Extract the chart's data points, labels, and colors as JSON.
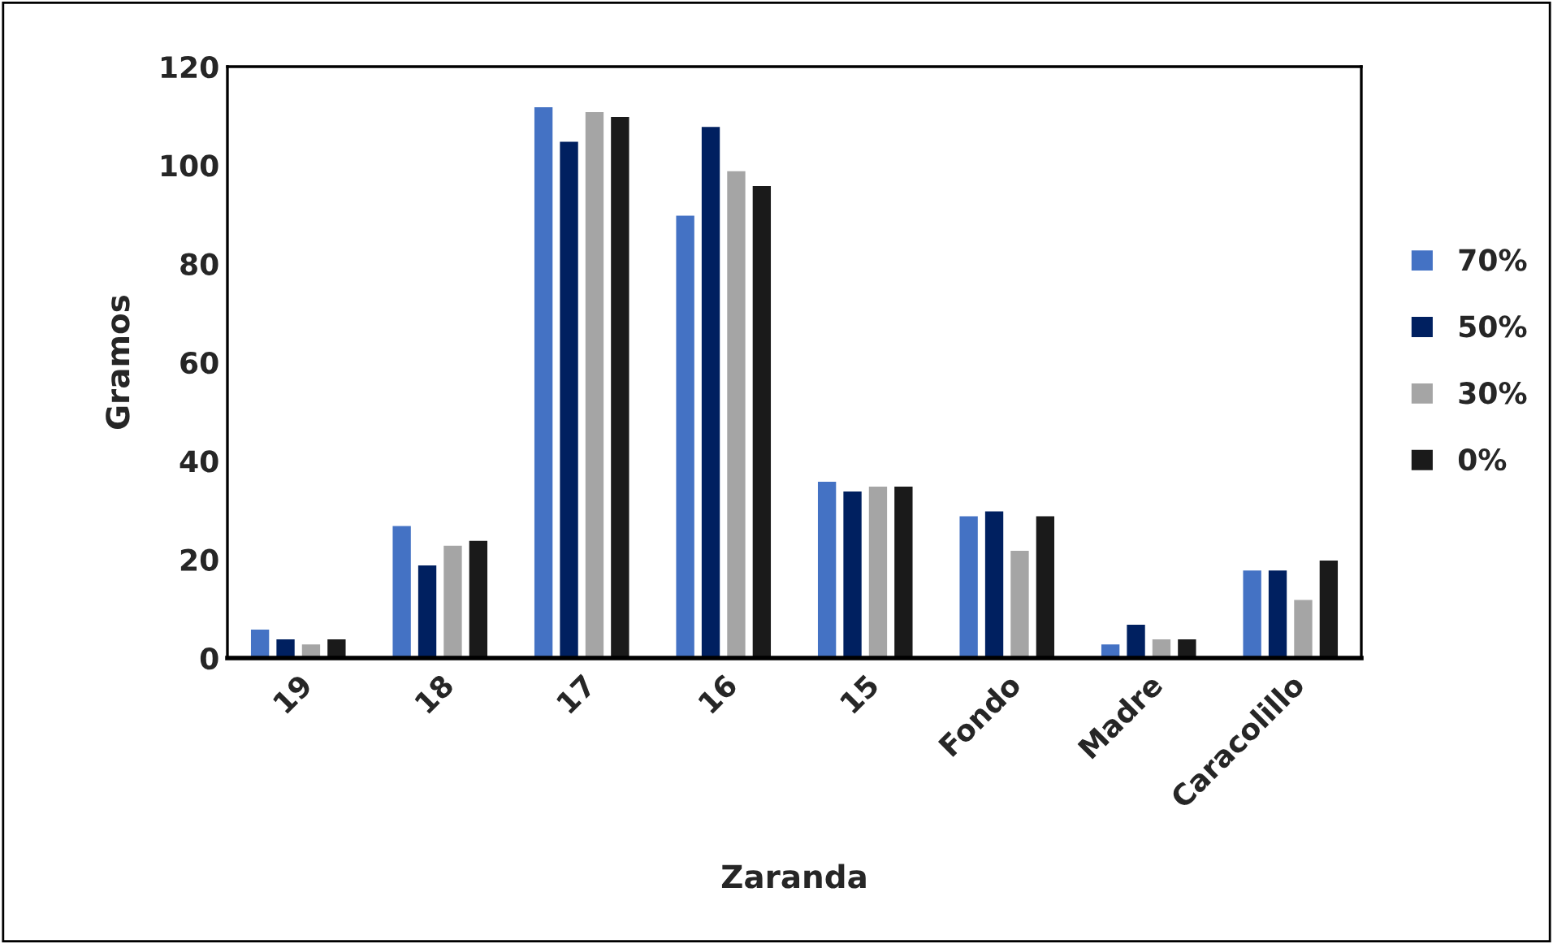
{
  "chart_data": {
    "type": "bar",
    "xlabel": "Zaranda",
    "ylabel": "Gramos",
    "categories": [
      "19",
      "18",
      "17",
      "16",
      "15",
      "Fondo",
      "Madre",
      "Caracolillo"
    ],
    "series": [
      {
        "name": "70%",
        "color": "#4472c4",
        "values": [
          6,
          27,
          112,
          90,
          36,
          29,
          3,
          18
        ]
      },
      {
        "name": "50%",
        "color": "#002060",
        "values": [
          4,
          19,
          105,
          108,
          34,
          30,
          7,
          18
        ]
      },
      {
        "name": "30%",
        "color": "#a5a5a5",
        "values": [
          3,
          23,
          111,
          99,
          35,
          22,
          4,
          12
        ]
      },
      {
        "name": "0%",
        "color": "#1a1a1a",
        "values": [
          4,
          24,
          110,
          96,
          35,
          29,
          4,
          20
        ]
      }
    ],
    "ylim": [
      0,
      120
    ],
    "yticks": [
      0,
      20,
      40,
      60,
      80,
      100,
      120
    ],
    "grid": false,
    "legend": "right"
  }
}
